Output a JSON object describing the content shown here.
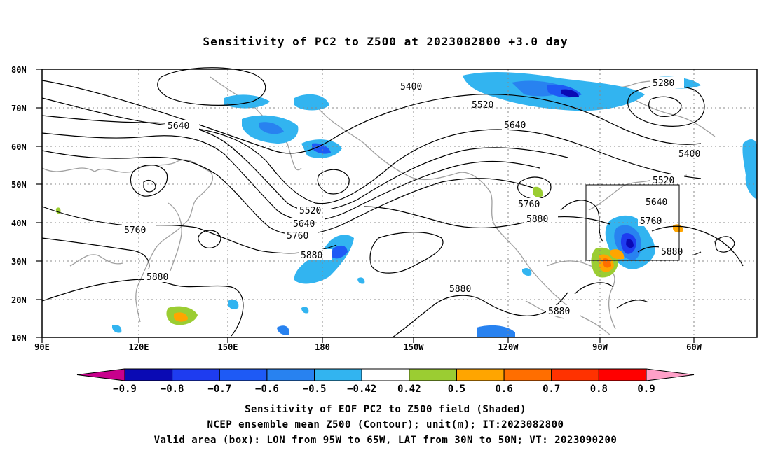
{
  "title": "Sensitivity of PC2 to Z500 at 2023082800 +3.0 day",
  "lat_labels": [
    "80N",
    "70N",
    "60N",
    "50N",
    "40N",
    "30N",
    "20N",
    "10N"
  ],
  "lon_labels": [
    "90E",
    "120E",
    "150E",
    "180",
    "150W",
    "120W",
    "90W",
    "60W"
  ],
  "contour_labels": [
    "5400",
    "5520",
    "5640",
    "5280",
    "5400",
    "5520",
    "5640",
    "5760",
    "5880",
    "5640",
    "5760",
    "5520",
    "5640",
    "5760",
    "5880",
    "5760",
    "5880",
    "5880",
    "5880",
    "5880"
  ],
  "colorbar": {
    "labels": [
      "-0.9",
      "-0.8",
      "-0.7",
      "-0.6",
      "-0.5",
      "-0.42",
      "0.42",
      "0.5",
      "0.6",
      "0.7",
      "0.8",
      "0.9"
    ],
    "colors": [
      "#c8008c",
      "#0a0ab4",
      "#1e3cf0",
      "#1e5af5",
      "#2882f0",
      "#32b4f0",
      "#ffffff",
      "#9bcd32",
      "#ffa500",
      "#ff6e00",
      "#ff3200",
      "#ff0000",
      "#ffa0c8"
    ]
  },
  "captions": {
    "line1": "Sensitivity of EOF PC2 to Z500 field (Shaded)",
    "line2": "NCEP ensemble mean Z500 (Contour); unit(m); IT:2023082800",
    "line3": "Valid area (box): LON from 95W to 65W, LAT from 30N to 50N; VT: 2023090200"
  }
}
